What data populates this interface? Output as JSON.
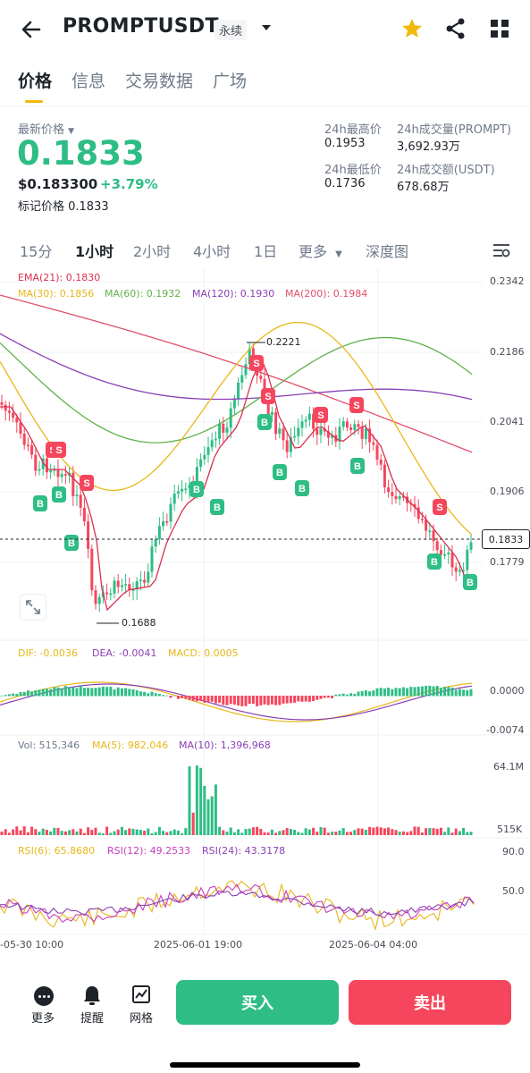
{
  "header": {
    "symbol": "PROMPTUSDT",
    "contract_type": "永续"
  },
  "tabs": [
    {
      "label": "价格",
      "active": true
    },
    {
      "label": "信息",
      "active": false
    },
    {
      "label": "交易数据",
      "active": false
    },
    {
      "label": "广场",
      "active": false
    }
  ],
  "price": {
    "last_price_label": "最新价格",
    "last_price": "0.1833",
    "usd_price": "$0.183300",
    "change_pct": "+3.79%",
    "mark_price": "标记价格  0.1833",
    "high_24h_label": "24h最高价",
    "high_24h": "0.1953",
    "low_24h_label": "24h最低价",
    "low_24h": "0.1736",
    "vol_24h_label": "24h成交量(PROMPT)",
    "vol_24h": "3,692.93万",
    "turnover_24h_label": "24h成交额(USDT)",
    "turnover_24h": "678.68万"
  },
  "intervals": {
    "i15m": "15分",
    "i1h": "1小时",
    "i2h": "2小时",
    "i4h": "4小时",
    "i1d": "1日",
    "more": "更多",
    "depth": "深度图",
    "active": "1小时"
  },
  "chart_data": {
    "type": "candlestick",
    "main_indicators": {
      "ema": "EMA(21): 0.1830",
      "ma30": "MA(30): 0.1856",
      "ma60": "MA(60): 0.1932",
      "ma120": "MA(120): 0.1930",
      "ma200": "MA(200): 0.1984"
    },
    "price_axis": [
      "0.2342",
      "0.2186",
      "0.2041",
      "0.1906",
      "0.1779"
    ],
    "current_price_tag": "0.1833",
    "high_marker": "0.2221",
    "low_marker": "0.1688",
    "macd": {
      "dif": "DIF: -0.0036",
      "dea": "DEA: -0.0041",
      "macd": "MACD: 0.0005",
      "axis": [
        "0.0000",
        "-0.0074"
      ]
    },
    "volume": {
      "vol": "Vol: 515,346",
      "ma5": "MA(5): 982,046",
      "ma10": "MA(10): 1,396,968",
      "axis": [
        "64.1M",
        "515K"
      ]
    },
    "rsi": {
      "rsi6": "RSI(6): 65.8680",
      "rsi12": "RSI(12): 49.2533",
      "rsi24": "RSI(24): 43.3178",
      "axis": [
        "90.0",
        "50.0"
      ]
    },
    "time_axis": [
      "-05-30 10:00",
      "2025-06-01 19:00",
      "2025-06-04 04:00"
    ]
  },
  "bottom": {
    "more": "更多",
    "alert": "提醒",
    "grid": "网格",
    "buy": "买入",
    "sell": "卖出"
  },
  "colors": {
    "up": "#2ebd85",
    "down": "#f6465d",
    "brand": "#f0b90b",
    "ema": "#d9304f",
    "ma30": "#e8b71a",
    "ma60": "#5fb049",
    "ma120": "#8a3fb5",
    "ma200": "#e0506b"
  }
}
